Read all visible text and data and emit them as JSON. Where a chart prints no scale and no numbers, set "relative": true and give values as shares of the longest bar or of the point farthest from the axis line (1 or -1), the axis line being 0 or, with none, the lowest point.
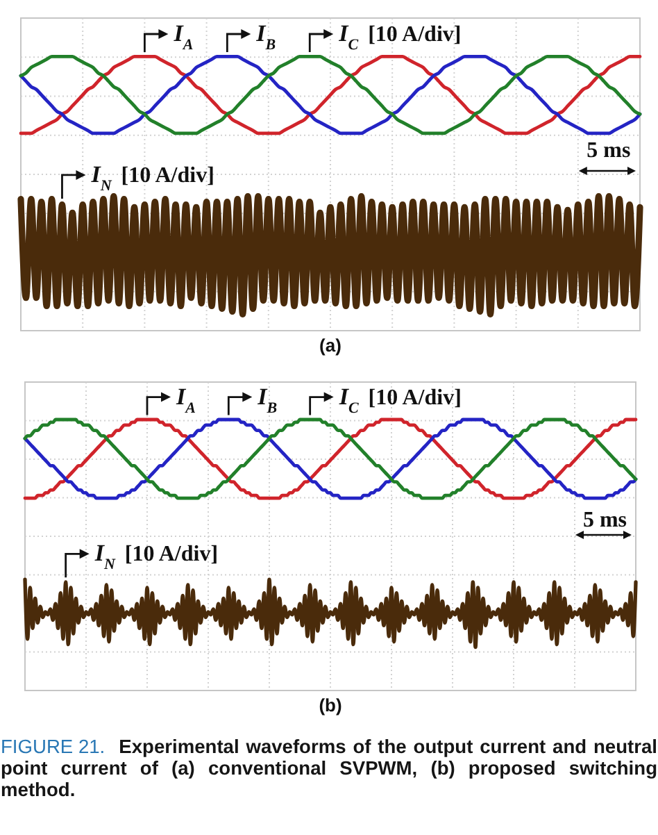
{
  "chart_data": [
    {
      "type": "line",
      "title": "(a)",
      "relative": true,
      "grid": true,
      "categories": [
        null,
        null,
        null,
        null,
        null,
        null,
        null,
        null,
        null,
        null,
        null,
        null,
        null,
        null,
        null,
        null,
        null,
        null,
        null,
        null,
        null,
        null,
        null,
        null,
        null,
        null,
        null,
        null,
        null,
        null,
        null,
        null,
        null,
        null,
        null,
        null,
        null,
        null,
        null,
        null,
        null,
        null,
        null,
        null,
        null,
        null,
        null,
        null,
        null,
        null,
        null,
        null,
        null,
        null,
        null,
        null,
        null,
        null,
        null,
        null,
        null,
        null,
        null,
        null,
        null,
        null,
        null,
        null,
        null,
        null,
        null,
        null,
        null,
        null,
        null,
        null,
        null,
        null,
        null,
        null,
        null,
        null,
        null,
        null,
        null,
        null,
        null,
        null,
        null,
        null,
        null,
        null,
        null,
        null,
        null,
        null,
        null,
        null,
        null,
        null,
        null,
        null,
        null,
        null,
        null,
        null,
        null,
        null,
        null,
        null,
        null,
        null,
        null,
        null,
        null,
        null,
        null,
        null,
        null,
        null,
        null
      ],
      "series": [
        {
          "name": "I$_{A}$",
          "color": "#d0242b",
          "values": [
            0.72,
            0.72,
            0.72,
            0.73,
            0.74,
            0.75,
            0.76,
            0.77,
            0.79,
            0.8,
            0.82,
            0.84,
            0.86,
            0.88,
            0.89,
            0.91,
            0.93,
            0.94,
            0.96,
            0.97,
            0.98,
            0.99,
            1,
            1,
            1,
            1,
            1,
            0.99,
            0.98,
            0.97,
            0.96,
            0.94,
            0.93,
            0.91,
            0.89,
            0.88,
            0.86,
            0.84,
            0.82,
            0.8,
            0.79,
            0.77,
            0.76,
            0.75,
            0.74,
            0.73,
            0.72,
            0.72,
            0.72,
            0.72,
            0.72,
            0.73,
            0.74,
            0.75,
            0.76,
            0.77,
            0.79,
            0.8,
            0.82,
            0.84,
            0.86,
            0.88,
            0.89,
            0.91,
            0.93,
            0.94,
            0.96,
            0.97,
            0.98,
            0.99,
            1,
            1,
            1,
            1,
            1,
            0.99,
            0.98,
            0.97,
            0.96,
            0.94,
            0.93,
            0.91,
            0.89,
            0.88,
            0.86,
            0.84,
            0.82,
            0.8,
            0.79,
            0.77,
            0.76,
            0.75,
            0.74,
            0.73,
            0.72,
            0.72,
            0.72,
            0.72,
            0.72,
            0.73,
            0.74,
            0.75,
            0.76,
            0.77,
            0.79,
            0.8,
            0.82,
            0.84,
            0.86,
            0.88,
            0.89,
            0.91,
            0.93,
            0.94,
            0.96,
            0.97,
            0.98,
            0.99,
            1,
            1,
            1
          ]
        },
        {
          "name": "I$_{B}$",
          "color": "#2424c4",
          "values": [
            0.93,
            0.91,
            0.89,
            0.88,
            0.86,
            0.84,
            0.82,
            0.8,
            0.79,
            0.77,
            0.76,
            0.75,
            0.74,
            0.73,
            0.72,
            0.72,
            0.72,
            0.72,
            0.72,
            0.73,
            0.74,
            0.75,
            0.76,
            0.77,
            0.79,
            0.8,
            0.82,
            0.84,
            0.86,
            0.88,
            0.89,
            0.91,
            0.93,
            0.94,
            0.96,
            0.97,
            0.98,
            0.99,
            1,
            1,
            1,
            1,
            1,
            0.99,
            0.98,
            0.97,
            0.96,
            0.94,
            0.93,
            0.91,
            0.89,
            0.88,
            0.86,
            0.84,
            0.82,
            0.8,
            0.79,
            0.77,
            0.76,
            0.75,
            0.74,
            0.73,
            0.72,
            0.72,
            0.72,
            0.72,
            0.72,
            0.73,
            0.74,
            0.75,
            0.76,
            0.77,
            0.79,
            0.8,
            0.82,
            0.84,
            0.86,
            0.88,
            0.89,
            0.91,
            0.93,
            0.94,
            0.96,
            0.97,
            0.98,
            0.99,
            1,
            1,
            1,
            1,
            1,
            0.99,
            0.98,
            0.97,
            0.96,
            0.94,
            0.93,
            0.91,
            0.89,
            0.88,
            0.86,
            0.84,
            0.82,
            0.8,
            0.79,
            0.77,
            0.76,
            0.75,
            0.74,
            0.73,
            0.72,
            0.72,
            0.72,
            0.72,
            0.72,
            0.73,
            0.74,
            0.75,
            0.76,
            0.77,
            0.79
          ]
        },
        {
          "name": "I$_{C}$",
          "color": "#22802a",
          "values": [
            0.93,
            0.94,
            0.96,
            0.97,
            0.98,
            0.99,
            1,
            1,
            1,
            1,
            1,
            0.99,
            0.98,
            0.97,
            0.96,
            0.94,
            0.93,
            0.91,
            0.89,
            0.88,
            0.86,
            0.84,
            0.82,
            0.8,
            0.79,
            0.77,
            0.76,
            0.75,
            0.74,
            0.73,
            0.72,
            0.72,
            0.72,
            0.72,
            0.72,
            0.73,
            0.74,
            0.75,
            0.76,
            0.77,
            0.79,
            0.8,
            0.82,
            0.84,
            0.86,
            0.88,
            0.89,
            0.91,
            0.93,
            0.94,
            0.96,
            0.97,
            0.98,
            0.99,
            1,
            1,
            1,
            1,
            1,
            0.99,
            0.98,
            0.97,
            0.96,
            0.94,
            0.93,
            0.91,
            0.89,
            0.88,
            0.86,
            0.84,
            0.82,
            0.8,
            0.79,
            0.77,
            0.76,
            0.75,
            0.74,
            0.73,
            0.72,
            0.72,
            0.72,
            0.72,
            0.72,
            0.73,
            0.74,
            0.75,
            0.76,
            0.77,
            0.79,
            0.8,
            0.82,
            0.84,
            0.86,
            0.88,
            0.89,
            0.91,
            0.93,
            0.94,
            0.96,
            0.97,
            0.98,
            0.99,
            1,
            1,
            1,
            1,
            1,
            0.99,
            0.98,
            0.97,
            0.96,
            0.94,
            0.93,
            0.91,
            0.89,
            0.88,
            0.86,
            0.84,
            0.82,
            0.8,
            0.79
          ]
        },
        {
          "name": "I$_{N}$",
          "color": "#4a2b0b",
          "values": [
            0.48,
            0.12,
            0.48,
            0.12,
            0.47,
            0.09,
            0.48,
            0.09,
            0.46,
            0.1,
            0.43,
            0.09,
            0.46,
            0.09,
            0.47,
            0.1,
            0.48,
            0.11,
            0.49,
            0.1,
            0.48,
            0.09,
            0.45,
            0.1,
            0.46,
            0.11,
            0.47,
            0.11,
            0.48,
            0.1,
            0.46,
            0.09,
            0.46,
            0.12,
            0.45,
            0.1,
            0.47,
            0.09,
            0.47,
            0.08,
            0.47,
            0.07,
            0.48,
            0.06,
            0.49,
            0.08,
            0.49,
            0.11,
            0.48,
            0.11,
            0.48,
            0.1,
            0.48,
            0.09,
            0.47,
            0.1,
            0.47,
            0.11,
            0.43,
            0.11,
            0.45,
            0.1,
            0.46,
            0.09,
            0.48,
            0.09,
            0.49,
            0.1,
            0.47,
            0.11,
            0.46,
            0.12,
            0.45,
            0.11,
            0.46,
            0.11,
            0.47,
            0.11,
            0.47,
            0.11,
            0.46,
            0.12,
            0.46,
            0.11,
            0.46,
            0.09,
            0.45,
            0.08,
            0.46,
            0.07,
            0.48,
            0.06,
            0.48,
            0.09,
            0.48,
            0.11,
            0.47,
            0.1,
            0.47,
            0.09,
            0.47,
            0.1,
            0.47,
            0.11,
            0.45,
            0.11,
            0.44,
            0.11,
            0.46,
            0.1,
            0.47,
            0.09,
            0.49,
            0.09,
            0.49,
            0.1,
            0.48,
            0.1,
            0.46,
            0.09,
            0.45
          ]
        }
      ],
      "annotations": [
        "[10 A/div]",
        "[10 A/div]",
        "5 ms"
      ]
    },
    {
      "type": "line",
      "title": "(b)",
      "relative": true,
      "grid": true,
      "categories": [
        null,
        null,
        null,
        null,
        null,
        null,
        null,
        null,
        null,
        null,
        null,
        null,
        null,
        null,
        null,
        null,
        null,
        null,
        null,
        null,
        null,
        null,
        null,
        null,
        null,
        null,
        null,
        null,
        null,
        null,
        null,
        null,
        null,
        null,
        null,
        null,
        null,
        null,
        null,
        null,
        null,
        null,
        null,
        null,
        null,
        null,
        null,
        null,
        null,
        null,
        null,
        null,
        null,
        null,
        null,
        null,
        null,
        null,
        null,
        null,
        null,
        null,
        null,
        null,
        null,
        null,
        null,
        null,
        null,
        null,
        null,
        null,
        null,
        null,
        null,
        null,
        null,
        null,
        null,
        null,
        null,
        null,
        null,
        null,
        null,
        null,
        null,
        null,
        null,
        null,
        null,
        null,
        null,
        null,
        null,
        null,
        null,
        null,
        null,
        null,
        null,
        null,
        null,
        null,
        null,
        null,
        null,
        null,
        null,
        null,
        null,
        null,
        null,
        null,
        null,
        null,
        null,
        null,
        null,
        null,
        null,
        null,
        null,
        null,
        null,
        null,
        null,
        null,
        null,
        null,
        null,
        null,
        null,
        null,
        null,
        null,
        null,
        null,
        null,
        null,
        null,
        null,
        null,
        null,
        null,
        null,
        null,
        null,
        null,
        null,
        null,
        null,
        null,
        null,
        null,
        null,
        null,
        null,
        null,
        null,
        null,
        null,
        null,
        null,
        null,
        null,
        null,
        null,
        null,
        null,
        null,
        null,
        null,
        null,
        null,
        null,
        null,
        null,
        null,
        null,
        null,
        null,
        null,
        null,
        null,
        null,
        null,
        null,
        null,
        null,
        null,
        null,
        null,
        null,
        null,
        null,
        null,
        null,
        null,
        null,
        null,
        null,
        null,
        null,
        null,
        null,
        null,
        null,
        null,
        null,
        null,
        null,
        null,
        null,
        null,
        null,
        null,
        null,
        null,
        null,
        null,
        null,
        null,
        null,
        null,
        null,
        null,
        null,
        null,
        null,
        null,
        null,
        null,
        null,
        null,
        null,
        null,
        null,
        null,
        null,
        null
      ],
      "series": [
        {
          "name": "I$_{A}$",
          "color": "#d0242b",
          "values": [
            0.71,
            0.71,
            0.71,
            0.71,
            0.71,
            0.72,
            0.72,
            0.72,
            0.73,
            0.73,
            0.74,
            0.74,
            0.75,
            0.76,
            0.77,
            0.77,
            0.78,
            0.79,
            0.8,
            0.81,
            0.82,
            0.83,
            0.83,
            0.84,
            0.85,
            0.86,
            0.87,
            0.88,
            0.89,
            0.9,
            0.91,
            0.92,
            0.93,
            0.94,
            0.94,
            0.95,
            0.96,
            0.96,
            0.97,
            0.98,
            0.98,
            0.98,
            0.99,
            0.99,
            1,
            1,
            1,
            1,
            1,
            1,
            1,
            1,
            1,
            0.99,
            0.99,
            0.98,
            0.98,
            0.98,
            0.97,
            0.96,
            0.96,
            0.95,
            0.94,
            0.94,
            0.93,
            0.92,
            0.91,
            0.9,
            0.89,
            0.88,
            0.87,
            0.86,
            0.85,
            0.84,
            0.83,
            0.83,
            0.82,
            0.81,
            0.8,
            0.79,
            0.78,
            0.77,
            0.77,
            0.76,
            0.75,
            0.74,
            0.74,
            0.73,
            0.73,
            0.72,
            0.72,
            0.72,
            0.71,
            0.71,
            0.71,
            0.71,
            0.71,
            0.71,
            0.71,
            0.71,
            0.71,
            0.72,
            0.72,
            0.72,
            0.73,
            0.73,
            0.74,
            0.74,
            0.75,
            0.76,
            0.77,
            0.77,
            0.78,
            0.79,
            0.8,
            0.81,
            0.82,
            0.83,
            0.83,
            0.84,
            0.85,
            0.86,
            0.87,
            0.88,
            0.89,
            0.9,
            0.91,
            0.92,
            0.93,
            0.94,
            0.94,
            0.95,
            0.96,
            0.96,
            0.97,
            0.98,
            0.98,
            0.98,
            0.99,
            0.99,
            1,
            1,
            1,
            1,
            1,
            1,
            1,
            1,
            1,
            0.99,
            0.99,
            0.98,
            0.98,
            0.98,
            0.97,
            0.96,
            0.96,
            0.95,
            0.94,
            0.94,
            0.93,
            0.92,
            0.91,
            0.9,
            0.89,
            0.88,
            0.87,
            0.86,
            0.85,
            0.84,
            0.83,
            0.83,
            0.82,
            0.81,
            0.8,
            0.79,
            0.78,
            0.77,
            0.77,
            0.76,
            0.75,
            0.74,
            0.74,
            0.73,
            0.73,
            0.72,
            0.72,
            0.72,
            0.71,
            0.71,
            0.71,
            0.71,
            0.71,
            0.71,
            0.71,
            0.71,
            0.71,
            0.72,
            0.72,
            0.72,
            0.73,
            0.73,
            0.74,
            0.74,
            0.75,
            0.76,
            0.77,
            0.77,
            0.78,
            0.79,
            0.8,
            0.81,
            0.82,
            0.83,
            0.83,
            0.84,
            0.85,
            0.86,
            0.87,
            0.88,
            0.89,
            0.9,
            0.91,
            0.92,
            0.93,
            0.94,
            0.94,
            0.95,
            0.96,
            0.96,
            0.97,
            0.98,
            0.98,
            0.98,
            0.99,
            0.99,
            1,
            1,
            1,
            1,
            1
          ]
        },
        {
          "name": "I$_{B}$",
          "color": "#2424c4",
          "values": [
            0.93,
            0.92,
            0.91,
            0.9,
            0.89,
            0.88,
            0.87,
            0.86,
            0.85,
            0.84,
            0.83,
            0.83,
            0.82,
            0.81,
            0.8,
            0.79,
            0.78,
            0.77,
            0.77,
            0.76,
            0.75,
            0.74,
            0.74,
            0.73,
            0.73,
            0.72,
            0.72,
            0.72,
            0.71,
            0.71,
            0.71,
            0.71,
            0.71,
            0.71,
            0.71,
            0.71,
            0.71,
            0.72,
            0.72,
            0.72,
            0.73,
            0.73,
            0.74,
            0.74,
            0.75,
            0.76,
            0.77,
            0.77,
            0.78,
            0.79,
            0.8,
            0.81,
            0.82,
            0.83,
            0.83,
            0.84,
            0.85,
            0.86,
            0.87,
            0.88,
            0.89,
            0.9,
            0.91,
            0.92,
            0.93,
            0.94,
            0.94,
            0.95,
            0.96,
            0.96,
            0.97,
            0.98,
            0.98,
            0.98,
            0.99,
            0.99,
            1,
            1,
            1,
            1,
            1,
            1,
            1,
            1,
            1,
            0.99,
            0.99,
            0.98,
            0.98,
            0.98,
            0.97,
            0.96,
            0.96,
            0.95,
            0.94,
            0.94,
            0.93,
            0.92,
            0.91,
            0.9,
            0.89,
            0.88,
            0.87,
            0.86,
            0.85,
            0.84,
            0.83,
            0.83,
            0.82,
            0.81,
            0.8,
            0.79,
            0.78,
            0.77,
            0.77,
            0.76,
            0.75,
            0.74,
            0.74,
            0.73,
            0.73,
            0.72,
            0.72,
            0.72,
            0.71,
            0.71,
            0.71,
            0.71,
            0.71,
            0.71,
            0.71,
            0.71,
            0.71,
            0.72,
            0.72,
            0.72,
            0.73,
            0.73,
            0.74,
            0.74,
            0.75,
            0.76,
            0.77,
            0.77,
            0.78,
            0.79,
            0.8,
            0.81,
            0.82,
            0.83,
            0.83,
            0.84,
            0.85,
            0.86,
            0.87,
            0.88,
            0.89,
            0.9,
            0.91,
            0.92,
            0.93,
            0.94,
            0.94,
            0.95,
            0.96,
            0.96,
            0.97,
            0.98,
            0.98,
            0.98,
            0.99,
            0.99,
            1,
            1,
            1,
            1,
            1,
            1,
            1,
            1,
            1,
            0.99,
            0.99,
            0.98,
            0.98,
            0.98,
            0.97,
            0.96,
            0.96,
            0.95,
            0.94,
            0.94,
            0.93,
            0.92,
            0.91,
            0.9,
            0.89,
            0.88,
            0.87,
            0.86,
            0.85,
            0.84,
            0.83,
            0.83,
            0.82,
            0.81,
            0.8,
            0.79,
            0.78,
            0.77,
            0.77,
            0.76,
            0.75,
            0.74,
            0.74,
            0.73,
            0.73,
            0.72,
            0.72,
            0.72,
            0.71,
            0.71,
            0.71,
            0.71,
            0.71,
            0.71,
            0.71,
            0.71,
            0.71,
            0.72,
            0.72,
            0.72,
            0.73,
            0.73,
            0.74,
            0.74,
            0.75,
            0.76,
            0.77,
            0.77,
            0.78
          ]
        },
        {
          "name": "I$_{C}$",
          "color": "#22802a",
          "values": [
            0.93,
            0.94,
            0.94,
            0.95,
            0.96,
            0.96,
            0.97,
            0.98,
            0.98,
            0.98,
            0.99,
            0.99,
            1,
            1,
            1,
            1,
            1,
            1,
            1,
            1,
            1,
            0.99,
            0.99,
            0.98,
            0.98,
            0.98,
            0.97,
            0.96,
            0.96,
            0.95,
            0.94,
            0.94,
            0.93,
            0.92,
            0.91,
            0.9,
            0.89,
            0.88,
            0.87,
            0.86,
            0.85,
            0.84,
            0.83,
            0.83,
            0.82,
            0.81,
            0.8,
            0.79,
            0.78,
            0.77,
            0.77,
            0.76,
            0.75,
            0.74,
            0.74,
            0.73,
            0.73,
            0.72,
            0.72,
            0.72,
            0.71,
            0.71,
            0.71,
            0.71,
            0.71,
            0.71,
            0.71,
            0.71,
            0.71,
            0.72,
            0.72,
            0.72,
            0.73,
            0.73,
            0.74,
            0.74,
            0.75,
            0.76,
            0.77,
            0.77,
            0.78,
            0.79,
            0.8,
            0.81,
            0.82,
            0.83,
            0.83,
            0.84,
            0.85,
            0.86,
            0.87,
            0.88,
            0.89,
            0.9,
            0.91,
            0.92,
            0.93,
            0.94,
            0.94,
            0.95,
            0.96,
            0.96,
            0.97,
            0.98,
            0.98,
            0.98,
            0.99,
            0.99,
            1,
            1,
            1,
            1,
            1,
            1,
            1,
            1,
            1,
            0.99,
            0.99,
            0.98,
            0.98,
            0.98,
            0.97,
            0.96,
            0.96,
            0.95,
            0.94,
            0.94,
            0.93,
            0.92,
            0.91,
            0.9,
            0.89,
            0.88,
            0.87,
            0.86,
            0.85,
            0.84,
            0.83,
            0.83,
            0.82,
            0.81,
            0.8,
            0.79,
            0.78,
            0.77,
            0.77,
            0.76,
            0.75,
            0.74,
            0.74,
            0.73,
            0.73,
            0.72,
            0.72,
            0.72,
            0.71,
            0.71,
            0.71,
            0.71,
            0.71,
            0.71,
            0.71,
            0.71,
            0.71,
            0.72,
            0.72,
            0.72,
            0.73,
            0.73,
            0.74,
            0.74,
            0.75,
            0.76,
            0.77,
            0.77,
            0.78,
            0.79,
            0.8,
            0.81,
            0.82,
            0.83,
            0.83,
            0.84,
            0.85,
            0.86,
            0.87,
            0.88,
            0.89,
            0.9,
            0.91,
            0.92,
            0.93,
            0.94,
            0.94,
            0.95,
            0.96,
            0.96,
            0.97,
            0.98,
            0.98,
            0.98,
            0.99,
            0.99,
            1,
            1,
            1,
            1,
            1,
            1,
            1,
            1,
            1,
            0.99,
            0.99,
            0.98,
            0.98,
            0.98,
            0.97,
            0.96,
            0.96,
            0.95,
            0.94,
            0.94,
            0.93,
            0.92,
            0.91,
            0.9,
            0.89,
            0.88,
            0.87,
            0.86,
            0.85,
            0.84,
            0.83,
            0.83,
            0.82,
            0.81,
            0.8,
            0.79,
            0.78
          ]
        },
        {
          "name": "I$_{N}$",
          "color": "#4a2b0b",
          "values": [
            0.41,
            0.19,
            0.38,
            0.23,
            0.34,
            0.25,
            0.31,
            0.27,
            0.29,
            0.28,
            0.3,
            0.26,
            0.32,
            0.23,
            0.36,
            0.19,
            0.4,
            0.17,
            0.38,
            0.21,
            0.34,
            0.25,
            0.31,
            0.27,
            0.29,
            0.28,
            0.3,
            0.26,
            0.32,
            0.24,
            0.35,
            0.2,
            0.39,
            0.18,
            0.37,
            0.22,
            0.33,
            0.25,
            0.31,
            0.27,
            0.29,
            0.28,
            0.3,
            0.26,
            0.32,
            0.23,
            0.34,
            0.19,
            0.38,
            0.17,
            0.36,
            0.21,
            0.33,
            0.25,
            0.31,
            0.27,
            0.29,
            0.28,
            0.3,
            0.26,
            0.32,
            0.23,
            0.35,
            0.19,
            0.39,
            0.17,
            0.37,
            0.21,
            0.33,
            0.25,
            0.31,
            0.27,
            0.29,
            0.28,
            0.3,
            0.26,
            0.32,
            0.24,
            0.34,
            0.21,
            0.38,
            0.19,
            0.36,
            0.23,
            0.33,
            0.25,
            0.31,
            0.27,
            0.29,
            0.28,
            0.3,
            0.26,
            0.33,
            0.23,
            0.36,
            0.19,
            0.41,
            0.17,
            0.38,
            0.21,
            0.34,
            0.25,
            0.31,
            0.27,
            0.29,
            0.28,
            0.3,
            0.26,
            0.32,
            0.24,
            0.35,
            0.2,
            0.39,
            0.18,
            0.37,
            0.22,
            0.33,
            0.25,
            0.31,
            0.27,
            0.29,
            0.28,
            0.3,
            0.26,
            0.32,
            0.23,
            0.36,
            0.19,
            0.4,
            0.17,
            0.38,
            0.21,
            0.34,
            0.25,
            0.31,
            0.27,
            0.29,
            0.28,
            0.3,
            0.26,
            0.32,
            0.24,
            0.34,
            0.2,
            0.38,
            0.18,
            0.36,
            0.22,
            0.33,
            0.25,
            0.31,
            0.27,
            0.29,
            0.28,
            0.3,
            0.26,
            0.32,
            0.24,
            0.35,
            0.21,
            0.39,
            0.19,
            0.37,
            0.23,
            0.33,
            0.25,
            0.31,
            0.27,
            0.29,
            0.28,
            0.3,
            0.26,
            0.32,
            0.23,
            0.36,
            0.18,
            0.4,
            0.16,
            0.38,
            0.21,
            0.34,
            0.24,
            0.31,
            0.27,
            0.29,
            0.28,
            0.3,
            0.26,
            0.32,
            0.24,
            0.36,
            0.2,
            0.4,
            0.18,
            0.38,
            0.22,
            0.34,
            0.25,
            0.31,
            0.27,
            0.29,
            0.28,
            0.3,
            0.26,
            0.32,
            0.23,
            0.36,
            0.19,
            0.4,
            0.17,
            0.38,
            0.21,
            0.34,
            0.25,
            0.31,
            0.27,
            0.29,
            0.28,
            0.3,
            0.26,
            0.32,
            0.24,
            0.35,
            0.2,
            0.39,
            0.18,
            0.37,
            0.22,
            0.33,
            0.25,
            0.31,
            0.27,
            0.29,
            0.28,
            0.3,
            0.26,
            0.32,
            0.24,
            0.36,
            0.2,
            0.4
          ]
        }
      ],
      "annotations": [
        "[10 A/div]",
        "[10 A/div]",
        "5 ms",
        "FIGURE 21. Experimental waveforms of the output current and neutral point current of (a) conventional SVPWM, (b) proposed switching method."
      ]
    }
  ]
}
